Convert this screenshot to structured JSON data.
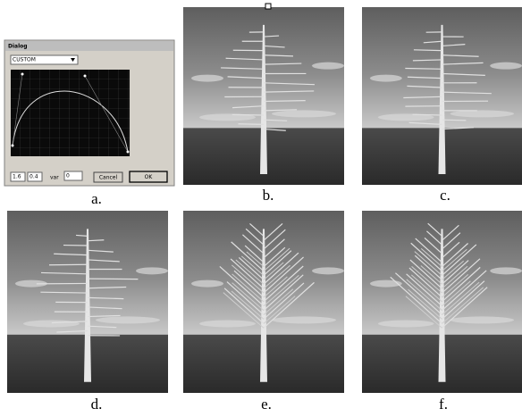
{
  "dialog": {
    "title": "Dialog",
    "preset": "CUSTOM",
    "fields": [
      "1.6",
      "0.4"
    ],
    "var_label": "var",
    "var_value": "0",
    "buttons": [
      "Cancel",
      "OK"
    ]
  },
  "panels": [
    {
      "label": "a."
    },
    {
      "label": "b."
    },
    {
      "label": "c."
    },
    {
      "label": "d."
    },
    {
      "label": "e."
    },
    {
      "label": "f."
    }
  ]
}
